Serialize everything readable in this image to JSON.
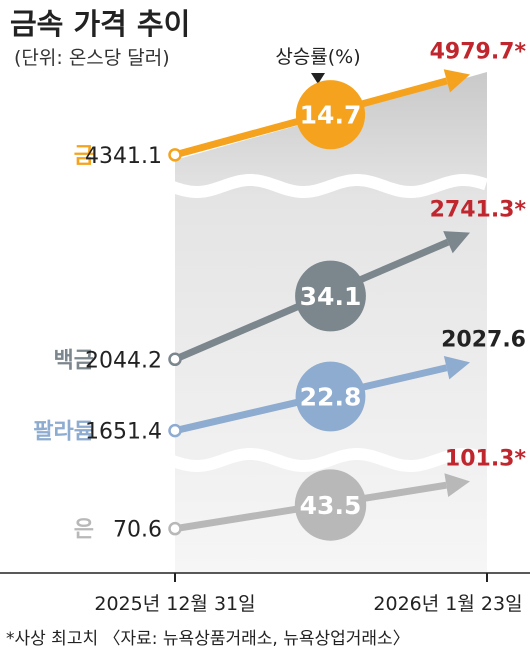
{
  "chart_data": {
    "type": "line",
    "title": "금속 가격 추이",
    "unit_label": "(단위: 온스당 달러)",
    "rate_header": "상승률(%)",
    "x": [
      "2025년 12월 31일",
      "2026년 1월 23일"
    ],
    "series": [
      {
        "name": "금",
        "start_label": "4341.1",
        "end_label": "4979.7*",
        "start": 4341.1,
        "end": 4979.7,
        "change_label": "14.7",
        "change_pct": 14.7,
        "color": "#f5a31e",
        "end_color": "#c0262d"
      },
      {
        "name": "백금",
        "start_label": "2044.2",
        "end_label": "2741.3*",
        "start": 2044.2,
        "end": 2741.3,
        "change_label": "34.1",
        "change_pct": 34.1,
        "color": "#7b868d",
        "end_color": "#c0262d"
      },
      {
        "name": "팔라듐",
        "start_label": "1651.4",
        "end_label": "2027.6",
        "start": 1651.4,
        "end": 2027.6,
        "change_label": "22.8",
        "change_pct": 22.8,
        "color": "#8eabd0",
        "end_color": "#222222"
      },
      {
        "name": "은",
        "start_label": "70.6",
        "end_label": "101.3*",
        "start": 70.6,
        "end": 101.3,
        "change_label": "43.5",
        "change_pct": 43.5,
        "color": "#b8b8b8",
        "end_color": "#c0262d"
      }
    ],
    "axis_breaks": true,
    "footnote": "*사상 최고치 〈자료: 뉴욕상품거래소, 뉴욕상업거래소〉"
  }
}
